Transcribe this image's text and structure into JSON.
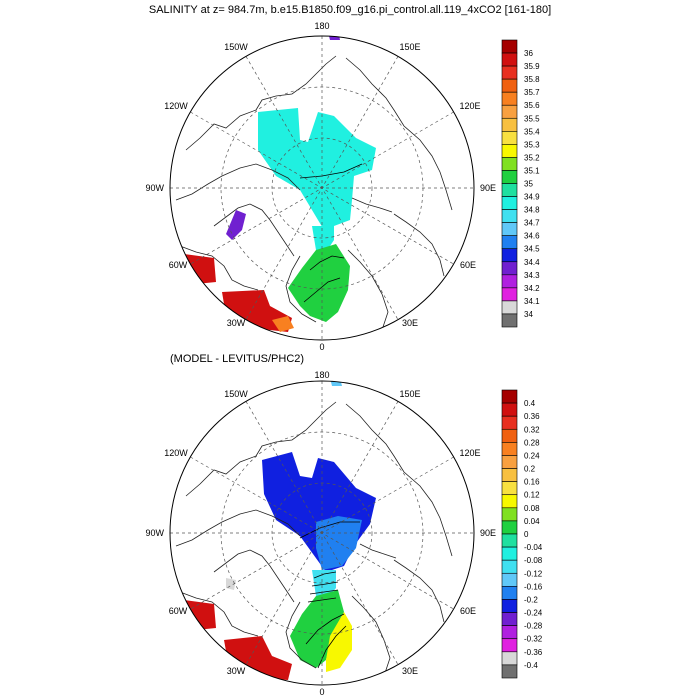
{
  "chart_data": [
    {
      "type": "heatmap",
      "projection": "north-polar-stereographic",
      "title": "SALINITY at z= 984.7m, b.e15.B1850.f09_g16.pi_control.all.119_4xCO2 [161-180]",
      "longitude_labels": {
        "top": "180",
        "bottom": "0",
        "left": "90W",
        "right": "90E",
        "upper_left": "150W",
        "upper_right": "150E",
        "mid_upper_left": "120W",
        "mid_upper_right": "120E",
        "lower_left": "60W",
        "lower_right": "60E",
        "bottom_left": "30W",
        "bottom_right": "30E"
      },
      "colorbar": {
        "labels": [
          "36",
          "35.9",
          "35.8",
          "35.7",
          "35.6",
          "35.5",
          "35.4",
          "35.3",
          "35.2",
          "35.1",
          "35",
          "34.9",
          "34.8",
          "34.7",
          "34.6",
          "34.5",
          "34.4",
          "34.3",
          "34.2",
          "34.1",
          "34"
        ],
        "colors": [
          "#a50000",
          "#d01010",
          "#e83020",
          "#f06010",
          "#f88020",
          "#f8a040",
          "#f8c040",
          "#f8e040",
          "#f8f800",
          "#80e020",
          "#20d040",
          "#20e0a0",
          "#20f0e0",
          "#40e0f0",
          "#60c8f8",
          "#2080f0",
          "#1020e0",
          "#7020d0",
          "#b020e0",
          "#e020e0",
          "#d8d8d8",
          "#707070"
        ]
      },
      "regions": [
        {
          "name": "arctic-basin",
          "value": 34.85
        },
        {
          "name": "fram-strait",
          "value": 34.9
        },
        {
          "name": "nordic-seas",
          "value": 35.05
        },
        {
          "name": "baffin-bay",
          "value": 34.4
        },
        {
          "name": "labrador-atlantic",
          "value": 35.95
        },
        {
          "name": "ne-atlantic-patch",
          "value": 35.65
        },
        {
          "name": "bering-strait",
          "value": 34.35
        }
      ]
    },
    {
      "type": "heatmap",
      "projection": "north-polar-stereographic",
      "title": "(MODEL - LEVITUS/PHC2)",
      "longitude_labels": {
        "top": "180",
        "bottom": "0",
        "left": "90W",
        "right": "90E",
        "upper_left": "150W",
        "upper_right": "150E",
        "mid_upper_left": "120W",
        "mid_upper_right": "120E",
        "lower_left": "60W",
        "lower_right": "60E",
        "bottom_left": "30W",
        "bottom_right": "30E"
      },
      "colorbar": {
        "labels": [
          "0.4",
          "0.36",
          "0.32",
          "0.28",
          "0.24",
          "0.2",
          "0.16",
          "0.12",
          "0.08",
          "0.04",
          "0",
          "-0.04",
          "-0.08",
          "-0.12",
          "-0.16",
          "-0.2",
          "-0.24",
          "-0.28",
          "-0.32",
          "-0.36",
          "-0.4"
        ],
        "colors": [
          "#a50000",
          "#d01010",
          "#e83020",
          "#f06010",
          "#f88020",
          "#f8a040",
          "#f8c040",
          "#f8e040",
          "#f8f800",
          "#80e020",
          "#20d040",
          "#20e0a0",
          "#20f0e0",
          "#40e0f0",
          "#60c8f8",
          "#2080f0",
          "#1020e0",
          "#7020d0",
          "#b020e0",
          "#e020e0",
          "#d8d8d8",
          "#707070"
        ]
      },
      "regions": [
        {
          "name": "arctic-basin",
          "value": -0.22
        },
        {
          "name": "arctic-center",
          "value": -0.18
        },
        {
          "name": "fram-strait",
          "value": -0.1
        },
        {
          "name": "nordic-seas",
          "value": 0.04
        },
        {
          "name": "norwegian-coast",
          "value": 0.12
        },
        {
          "name": "baffin-bay",
          "value": -0.36
        },
        {
          "name": "labrador-atlantic",
          "value": 0.4
        },
        {
          "name": "bering-strait",
          "value": -0.14
        }
      ]
    }
  ]
}
